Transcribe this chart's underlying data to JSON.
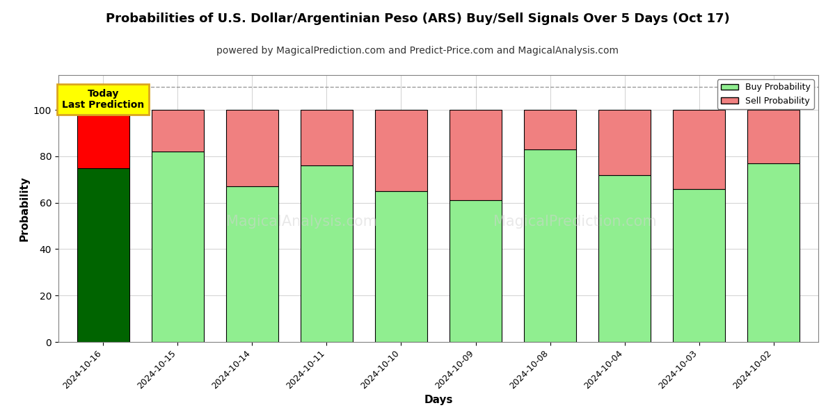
{
  "title": "Probabilities of U.S. Dollar/Argentinian Peso (ARS) Buy/Sell Signals Over 5 Days (Oct 17)",
  "subtitle": "powered by MagicalPrediction.com and Predict-Price.com and MagicalAnalysis.com",
  "xlabel": "Days",
  "ylabel": "Probability",
  "dates": [
    "2024-10-16",
    "2024-10-15",
    "2024-10-14",
    "2024-10-11",
    "2024-10-10",
    "2024-10-09",
    "2024-10-08",
    "2024-10-04",
    "2024-10-03",
    "2024-10-02"
  ],
  "buy_values": [
    75,
    82,
    67,
    76,
    65,
    61,
    83,
    72,
    66,
    77
  ],
  "sell_values": [
    25,
    18,
    33,
    24,
    35,
    39,
    17,
    28,
    34,
    23
  ],
  "today_buy_color": "#006400",
  "today_sell_color": "#FF0000",
  "buy_color": "#90EE90",
  "sell_color": "#F08080",
  "today_annotation": "Today\nLast Prediction",
  "annotation_bg_color": "#FFFF00",
  "annotation_border_color": "#DAA520",
  "dashed_line_y": 110,
  "ylim": [
    0,
    115
  ],
  "yticks": [
    0,
    20,
    40,
    60,
    80,
    100
  ],
  "legend_buy_label": "Buy Probability",
  "legend_sell_label": "Sell Probability",
  "watermark1": "MagicalAnalysis.com",
  "watermark2": "MagicalPrediction.com",
  "bar_edge_color": "#000000",
  "bar_linewidth": 0.8,
  "title_fontsize": 13,
  "subtitle_fontsize": 10,
  "axis_label_fontsize": 11,
  "bar_width": 0.7
}
